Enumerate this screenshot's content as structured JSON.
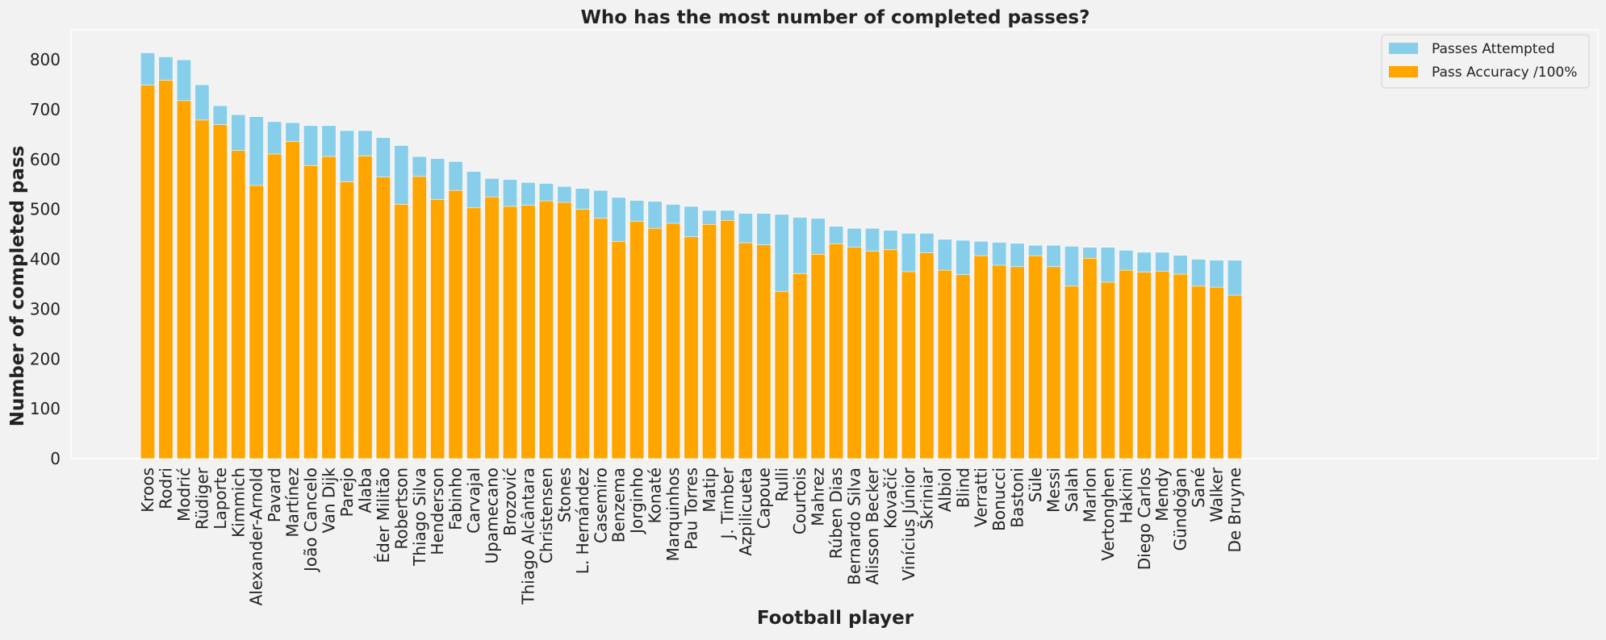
{
  "chart_data": {
    "type": "bar",
    "title": "Who has the most number of completed passes?",
    "xlabel": "Football player",
    "ylabel": "Number of completed pass",
    "ylim": [
      0,
      860
    ],
    "yticks": [
      0,
      100,
      200,
      300,
      400,
      500,
      600,
      700,
      800
    ],
    "grid": false,
    "legend_position": "top-right",
    "categories": [
      "Kroos",
      "Rodri",
      "Modrić",
      "Rüdiger",
      "Laporte",
      "Kimmich",
      "Alexander-Arnold",
      "Pavard",
      "Martínez",
      "João Cancelo",
      "Van Dijk",
      "Parejo",
      "Alaba",
      "Éder Militão",
      "Robertson",
      "Thiago Silva",
      "Henderson",
      "Fabinho",
      "Carvajal",
      "Upamecano",
      "Brozović",
      "Thiago Alcântara",
      "Christensen",
      "Stones",
      "L. Hernández",
      "Casemiro",
      "Benzema",
      "Jorginho",
      "Konaté",
      "Marquinhos",
      "Pau Torres",
      "Matip",
      "J. Timber",
      "Azpilicueta",
      "Capoue",
      "Rulli",
      "Courtois",
      "Mahrez",
      "Rúben Dias",
      "Bernardo Silva",
      "Alisson Becker",
      "Kovačić",
      "Vinícius Júnior",
      "Škriniar",
      "Albiol",
      "Blind",
      "Verratti",
      "Bonucci",
      "Bastoni",
      "Süle",
      "Messi",
      "Salah",
      "Marlon",
      "Vertonghen",
      "Hakimi",
      "Diego Carlos",
      "Mendy",
      "Gündoğan",
      "Sané",
      "Walker",
      "De Bruyne"
    ],
    "series": [
      {
        "name": "Passes Attempted",
        "color": "#87ceeb",
        "values": [
          814,
          806,
          800,
          750,
          708,
          690,
          686,
          676,
          674,
          668,
          668,
          658,
          658,
          644,
          628,
          606,
          602,
          596,
          576,
          562,
          560,
          554,
          552,
          546,
          542,
          538,
          524,
          518,
          516,
          510,
          506,
          498,
          498,
          492,
          492,
          490,
          484,
          482,
          466,
          462,
          462,
          458,
          452,
          452,
          440,
          438,
          436,
          434,
          432,
          428,
          428,
          426,
          424,
          424,
          418,
          414,
          414,
          408,
          400,
          398,
          398
        ],
        "bar": "back"
      },
      {
        "name": "Pass Accuracy /100%",
        "color": "#ffa500",
        "values": [
          749,
          759,
          718,
          679,
          670,
          618,
          548,
          611,
          636,
          588,
          606,
          555,
          607,
          565,
          510,
          566,
          520,
          538,
          503,
          525,
          506,
          508,
          517,
          514,
          500,
          482,
          436,
          476,
          462,
          472,
          445,
          470,
          478,
          433,
          429,
          335,
          371,
          410,
          431,
          424,
          416,
          419,
          375,
          413,
          378,
          369,
          407,
          388,
          385,
          407,
          385,
          346,
          402,
          354,
          378,
          374,
          376,
          370,
          346,
          344,
          328
        ],
        "bar": "front"
      }
    ]
  }
}
